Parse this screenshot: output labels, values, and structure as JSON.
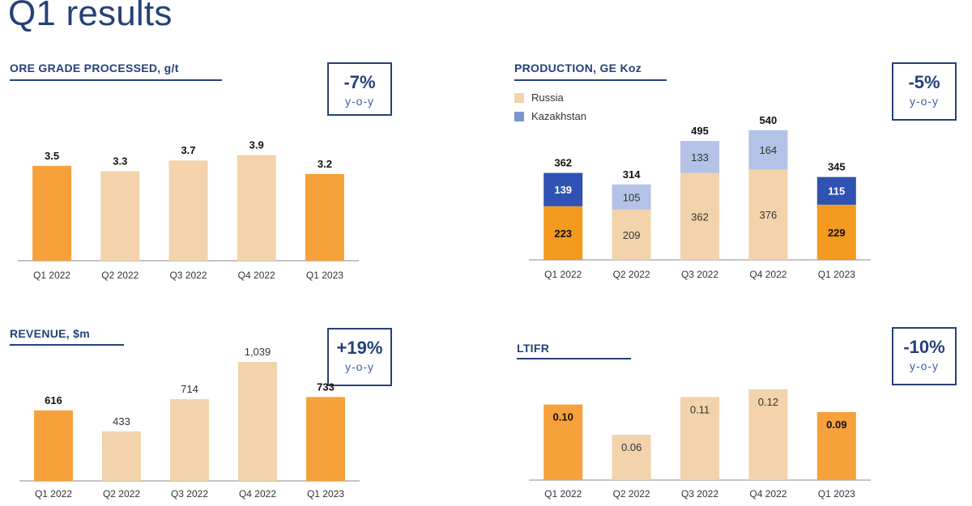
{
  "page": {
    "title": "Q1 results"
  },
  "colors": {
    "highlight": "#f7a13c",
    "highlight_dark": "#f39a1f",
    "muted": "#f3d3ab",
    "kazakhstan_highlight": "#2f52b3",
    "kazakhstan_muted": "#b3c2e6",
    "axis": "#888888",
    "brand": "#26417a"
  },
  "panels": {
    "ore": {
      "title": "ORE GRADE PROCESSED, g/t",
      "kpi_value": "-7%",
      "kpi_sub": "y-o-y"
    },
    "production": {
      "title": "PRODUCTION, GE Koz",
      "kpi_value": "-5%",
      "kpi_sub": "y-o-y",
      "legend": [
        {
          "label": "Russia",
          "color": "#f3d3ab"
        },
        {
          "label": "Kazakhstan",
          "color": "#7b95cf"
        }
      ]
    },
    "revenue": {
      "title": "REVENUE, $m",
      "kpi_value": "+19%",
      "kpi_sub": "y-o-y"
    },
    "ltifr": {
      "title": "LTIFR",
      "kpi_value": "-10%",
      "kpi_sub": "y-o-y"
    }
  },
  "chart_data": [
    {
      "id": "ore",
      "type": "bar",
      "title": "ORE GRADE PROCESSED, g/t",
      "categories": [
        "Q1 2022",
        "Q2 2022",
        "Q3 2022",
        "Q4 2022",
        "Q1 2023"
      ],
      "values": [
        3.5,
        3.3,
        3.7,
        3.9,
        3.2
      ],
      "labels": [
        "3.5",
        "3.3",
        "3.7",
        "3.9",
        "3.2"
      ],
      "highlight": [
        true,
        false,
        false,
        false,
        true
      ],
      "ylim": [
        0,
        5.5
      ]
    },
    {
      "id": "production",
      "type": "bar",
      "stacked": true,
      "title": "PRODUCTION, GE Koz",
      "categories": [
        "Q1 2022",
        "Q2 2022",
        "Q3 2022",
        "Q4 2022",
        "Q1 2023"
      ],
      "series": [
        {
          "name": "Russia",
          "values": [
            223,
            209,
            362,
            376,
            229
          ]
        },
        {
          "name": "Kazakhstan",
          "values": [
            139,
            105,
            133,
            164,
            115
          ]
        }
      ],
      "totals": [
        362,
        314,
        495,
        540,
        345
      ],
      "highlight": [
        true,
        false,
        false,
        false,
        true
      ],
      "ylim": [
        0,
        610
      ]
    },
    {
      "id": "revenue",
      "type": "bar",
      "title": "REVENUE, $m",
      "categories": [
        "Q1 2022",
        "Q2 2022",
        "Q3 2022",
        "Q4 2022",
        "Q1 2023"
      ],
      "values": [
        616,
        433,
        714,
        1039,
        733
      ],
      "labels": [
        "616",
        "433",
        "714",
        "1,039",
        "733"
      ],
      "highlight": [
        true,
        false,
        false,
        false,
        true
      ],
      "ylim": [
        0,
        1160
      ]
    },
    {
      "id": "ltifr",
      "type": "bar",
      "title": "LTIFR",
      "categories": [
        "Q1 2022",
        "Q2 2022",
        "Q3 2022",
        "Q4 2022",
        "Q1 2023"
      ],
      "values": [
        0.1,
        0.06,
        0.11,
        0.12,
        0.09
      ],
      "labels": [
        "0.10",
        "0.06",
        "0.11",
        "0.12",
        "0.09"
      ],
      "highlight": [
        true,
        false,
        false,
        false,
        true
      ],
      "ylim": [
        0,
        0.135
      ]
    }
  ]
}
